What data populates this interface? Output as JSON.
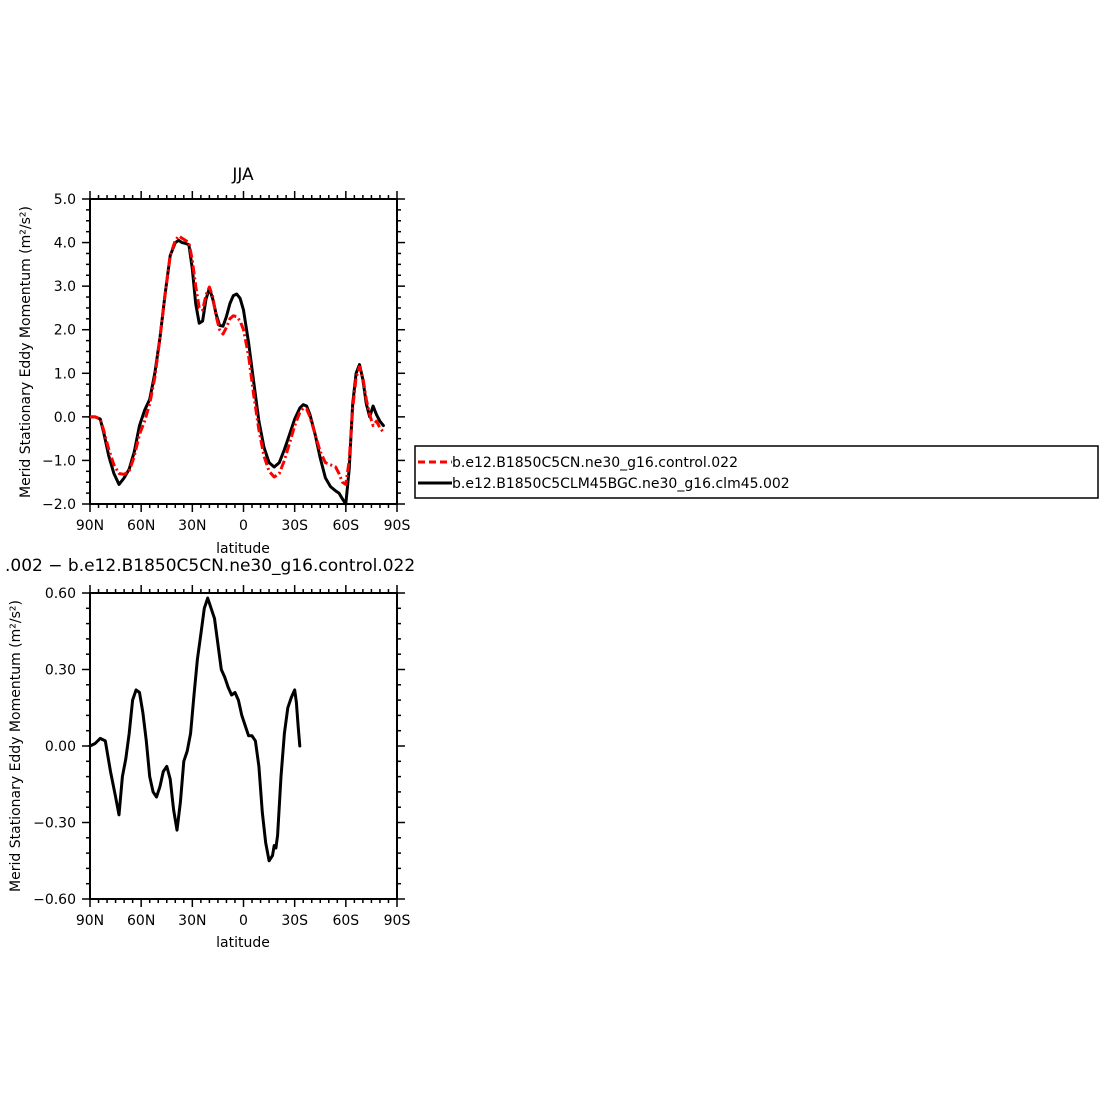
{
  "chart_data": [
    {
      "type": "line",
      "title": "JJA",
      "xlabel": "latitude",
      "ylabel": "Merid Stationary Eddy Momentum (m²/s²)",
      "xlim": [
        90,
        -90
      ],
      "ylim": [
        -2.0,
        5.0
      ],
      "xticks": [
        90,
        60,
        30,
        0,
        -30,
        -60,
        -90
      ],
      "xtick_labels": [
        "90N",
        "60N",
        "30N",
        "0",
        "30S",
        "60S",
        "90S"
      ],
      "yticks": [
        -2.0,
        -1.0,
        0.0,
        1.0,
        2.0,
        3.0,
        4.0,
        5.0
      ],
      "ytick_labels": [
        "−2.0",
        "−1.0",
        "0.0",
        "1.0",
        "2.0",
        "3.0",
        "4.0",
        "5.0"
      ],
      "grid": false,
      "legend": "right-outside",
      "series": [
        {
          "name": "b.e12.B1850C5CN.ne30_g16.control.022",
          "color": "#ff0000",
          "style": "dashed",
          "points": [
            [
              90,
              0
            ],
            [
              87,
              0
            ],
            [
              84,
              -0.05
            ],
            [
              82,
              -0.3
            ],
            [
              79,
              -0.75
            ],
            [
              76,
              -1.1
            ],
            [
              73,
              -1.3
            ],
            [
              70,
              -1.32
            ],
            [
              67,
              -1.25
            ],
            [
              64,
              -0.9
            ],
            [
              61,
              -0.4
            ],
            [
              58,
              -0.1
            ],
            [
              55,
              0.3
            ],
            [
              52,
              0.9
            ],
            [
              49,
              1.8
            ],
            [
              46,
              2.8
            ],
            [
              43,
              3.7
            ],
            [
              40,
              4.05
            ],
            [
              38,
              4.15
            ],
            [
              36,
              4.1
            ],
            [
              34,
              4.05
            ],
            [
              32,
              4.0
            ],
            [
              30,
              3.6
            ],
            [
              28,
              3.0
            ],
            [
              26,
              2.5
            ],
            [
              24,
              2.45
            ],
            [
              22,
              2.8
            ],
            [
              20,
              2.98
            ],
            [
              18,
              2.75
            ],
            [
              16,
              2.3
            ],
            [
              14,
              2.0
            ],
            [
              12,
              1.9
            ],
            [
              10,
              2.05
            ],
            [
              8,
              2.25
            ],
            [
              6,
              2.32
            ],
            [
              4,
              2.3
            ],
            [
              2,
              2.2
            ],
            [
              0,
              2.0
            ],
            [
              -3,
              1.4
            ],
            [
              -6,
              0.5
            ],
            [
              -9,
              -0.3
            ],
            [
              -12,
              -0.9
            ],
            [
              -15,
              -1.25
            ],
            [
              -18,
              -1.38
            ],
            [
              -21,
              -1.3
            ],
            [
              -24,
              -1.0
            ],
            [
              -27,
              -0.6
            ],
            [
              -30,
              -0.2
            ],
            [
              -33,
              0.1
            ],
            [
              -35,
              0.2
            ],
            [
              -37,
              0.18
            ],
            [
              -39,
              0.0
            ],
            [
              -42,
              -0.4
            ],
            [
              -45,
              -0.8
            ],
            [
              -48,
              -1.05
            ],
            [
              -51,
              -1.1
            ],
            [
              -54,
              -1.15
            ],
            [
              -56,
              -1.3
            ],
            [
              -58,
              -1.5
            ],
            [
              -60,
              -1.55
            ],
            [
              -62,
              -1.0
            ],
            [
              -64,
              0.2
            ],
            [
              -66,
              0.9
            ],
            [
              -68,
              1.15
            ],
            [
              -70,
              0.9
            ],
            [
              -72,
              0.4
            ],
            [
              -74,
              0.05
            ],
            [
              -76,
              -0.2
            ],
            [
              -78,
              -0.1
            ],
            [
              -80,
              -0.25
            ],
            [
              -82,
              -0.35
            ]
          ]
        },
        {
          "name": "b.e12.B1850C5CLM45BGC.ne30_g16.clm45.002",
          "color": "#000000",
          "style": "solid",
          "points": [
            [
              90,
              0
            ],
            [
              87,
              0
            ],
            [
              84,
              -0.05
            ],
            [
              82,
              -0.35
            ],
            [
              79,
              -0.9
            ],
            [
              76,
              -1.3
            ],
            [
              73,
              -1.55
            ],
            [
              70,
              -1.4
            ],
            [
              67,
              -1.2
            ],
            [
              64,
              -0.8
            ],
            [
              61,
              -0.2
            ],
            [
              58,
              0.15
            ],
            [
              55,
              0.4
            ],
            [
              52,
              1.0
            ],
            [
              49,
              1.8
            ],
            [
              46,
              2.8
            ],
            [
              43,
              3.7
            ],
            [
              40,
              4.0
            ],
            [
              38,
              4.05
            ],
            [
              36,
              4.0
            ],
            [
              34,
              3.98
            ],
            [
              32,
              3.95
            ],
            [
              30,
              3.4
            ],
            [
              28,
              2.6
            ],
            [
              26,
              2.15
            ],
            [
              24,
              2.2
            ],
            [
              22,
              2.7
            ],
            [
              20,
              2.95
            ],
            [
              18,
              2.7
            ],
            [
              16,
              2.35
            ],
            [
              14,
              2.1
            ],
            [
              12,
              2.08
            ],
            [
              10,
              2.3
            ],
            [
              8,
              2.6
            ],
            [
              6,
              2.78
            ],
            [
              4,
              2.82
            ],
            [
              2,
              2.72
            ],
            [
              0,
              2.45
            ],
            [
              -3,
              1.7
            ],
            [
              -6,
              0.8
            ],
            [
              -9,
              -0.1
            ],
            [
              -12,
              -0.7
            ],
            [
              -15,
              -1.05
            ],
            [
              -18,
              -1.15
            ],
            [
              -21,
              -1.05
            ],
            [
              -24,
              -0.75
            ],
            [
              -27,
              -0.4
            ],
            [
              -30,
              -0.05
            ],
            [
              -33,
              0.2
            ],
            [
              -35,
              0.28
            ],
            [
              -37,
              0.25
            ],
            [
              -39,
              0.05
            ],
            [
              -42,
              -0.4
            ],
            [
              -45,
              -0.95
            ],
            [
              -48,
              -1.4
            ],
            [
              -51,
              -1.6
            ],
            [
              -54,
              -1.7
            ],
            [
              -56,
              -1.75
            ],
            [
              -58,
              -1.88
            ],
            [
              -60,
              -2.0
            ],
            [
              -62,
              -1.2
            ],
            [
              -64,
              0.3
            ],
            [
              -66,
              1.0
            ],
            [
              -68,
              1.2
            ],
            [
              -70,
              0.85
            ],
            [
              -72,
              0.3
            ],
            [
              -74,
              0.0
            ],
            [
              -76,
              0.25
            ],
            [
              -78,
              0.05
            ],
            [
              -80,
              -0.1
            ],
            [
              -82,
              -0.2
            ]
          ]
        }
      ]
    },
    {
      "type": "line",
      "title": ".002 − b.e12.B1850C5CN.ne30_g16.control.022",
      "xlabel": "latitude",
      "ylabel": "Merid Stationary Eddy Momentum (m²/s²)",
      "xlim": [
        90,
        -90
      ],
      "ylim": [
        -0.6,
        0.6
      ],
      "xticks": [
        90,
        60,
        30,
        0,
        -30,
        -60,
        -90
      ],
      "xtick_labels": [
        "90N",
        "60N",
        "30N",
        "0",
        "30S",
        "60S",
        "90S"
      ],
      "yticks": [
        -0.6,
        -0.3,
        0.0,
        0.3,
        0.6
      ],
      "ytick_labels": [
        "−0.60",
        "−0.30",
        "0.00",
        "0.30",
        "0.60"
      ],
      "grid": false,
      "series": [
        {
          "color": "#000000",
          "style": "solid",
          "points": [
            [
              90,
              0.0
            ],
            [
              87,
              0.01
            ],
            [
              84,
              0.03
            ],
            [
              81,
              0.02
            ],
            [
              78,
              -0.1
            ],
            [
              75,
              -0.2
            ],
            [
              73,
              -0.27
            ],
            [
              71,
              -0.12
            ],
            [
              69,
              -0.05
            ],
            [
              67,
              0.05
            ],
            [
              65,
              0.18
            ],
            [
              63,
              0.22
            ],
            [
              61,
              0.21
            ],
            [
              59,
              0.13
            ],
            [
              57,
              0.02
            ],
            [
              55,
              -0.12
            ],
            [
              53,
              -0.18
            ],
            [
              51,
              -0.2
            ],
            [
              49,
              -0.16
            ],
            [
              47,
              -0.1
            ],
            [
              45,
              -0.08
            ],
            [
              43,
              -0.13
            ],
            [
              41,
              -0.25
            ],
            [
              39,
              -0.33
            ],
            [
              37,
              -0.22
            ],
            [
              35,
              -0.06
            ],
            [
              33,
              -0.02
            ],
            [
              31,
              0.05
            ],
            [
              29,
              0.2
            ],
            [
              27,
              0.34
            ],
            [
              25,
              0.44
            ],
            [
              23,
              0.54
            ],
            [
              21,
              0.58
            ],
            [
              19,
              0.54
            ],
            [
              17,
              0.5
            ],
            [
              15,
              0.4
            ],
            [
              13,
              0.3
            ],
            [
              11,
              0.27
            ],
            [
              9,
              0.23
            ],
            [
              7,
              0.2
            ],
            [
              5,
              0.21
            ],
            [
              3,
              0.18
            ],
            [
              1,
              0.12
            ],
            [
              -1,
              0.08
            ],
            [
              -3,
              0.04
            ],
            [
              -5,
              0.04
            ],
            [
              -7,
              0.02
            ],
            [
              -9,
              -0.08
            ],
            [
              -11,
              -0.26
            ],
            [
              -13,
              -0.38
            ],
            [
              -15,
              -0.45
            ],
            [
              -17,
              -0.43
            ],
            [
              -18,
              -0.39
            ],
            [
              -19,
              -0.4
            ],
            [
              -20,
              -0.35
            ],
            [
              -22,
              -0.12
            ],
            [
              -24,
              0.05
            ],
            [
              -26,
              0.15
            ],
            [
              -28,
              0.19
            ],
            [
              -30,
              0.22
            ],
            [
              -31,
              0.17
            ],
            [
              -32,
              0.08
            ],
            [
              -33,
              0.0
            ]
          ]
        }
      ]
    }
  ]
}
